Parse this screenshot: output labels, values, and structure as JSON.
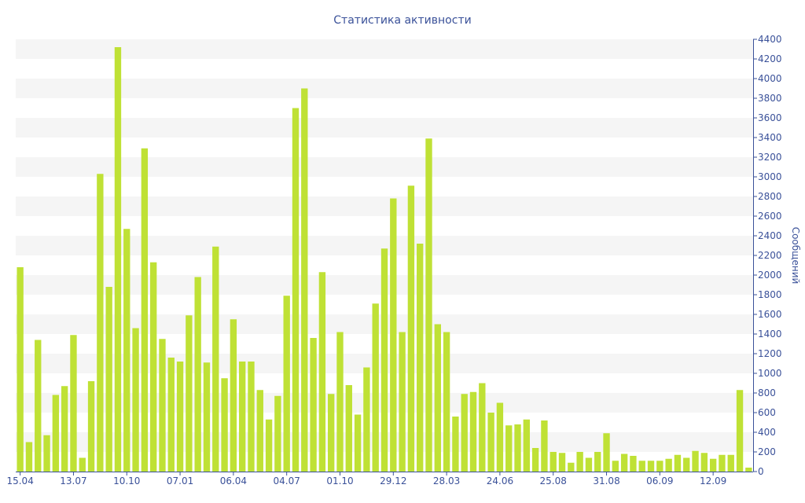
{
  "chart_data": {
    "type": "bar",
    "title": "Статистика активности",
    "xlabel": "",
    "ylabel": "Сообщений",
    "ylim": [
      0,
      4400
    ],
    "yticks": [
      0,
      200,
      400,
      600,
      800,
      1000,
      1200,
      1400,
      1600,
      1800,
      2000,
      2200,
      2400,
      2600,
      2800,
      3000,
      3200,
      3400,
      3600,
      3800,
      4000,
      4200,
      4400
    ],
    "y_axis_position": "right",
    "grid": "alternating horizontal bands",
    "legend": "none",
    "bar_color": "#bfe135",
    "band_color": "#f5f5f5",
    "text_color": "#3a5199",
    "x_tick_labels": [
      {
        "index": 0,
        "label": "15.04"
      },
      {
        "index": 6,
        "label": "13.07"
      },
      {
        "index": 12,
        "label": "10.10"
      },
      {
        "index": 18,
        "label": "07.01"
      },
      {
        "index": 24,
        "label": "06.04"
      },
      {
        "index": 30,
        "label": "04.07"
      },
      {
        "index": 36,
        "label": "01.10"
      },
      {
        "index": 42,
        "label": "29.12"
      },
      {
        "index": 48,
        "label": "28.03"
      },
      {
        "index": 54,
        "label": "24.06"
      },
      {
        "index": 60,
        "label": "25.08"
      },
      {
        "index": 66,
        "label": "31.08"
      },
      {
        "index": 72,
        "label": "06.09"
      },
      {
        "index": 78,
        "label": "12.09"
      }
    ],
    "values": [
      2080,
      300,
      1340,
      370,
      780,
      870,
      1390,
      140,
      920,
      3030,
      1880,
      4320,
      2470,
      1460,
      3290,
      2130,
      1350,
      1160,
      1120,
      1590,
      1980,
      1110,
      2290,
      950,
      1550,
      1120,
      1120,
      830,
      530,
      770,
      1790,
      3700,
      3900,
      1360,
      2030,
      790,
      1420,
      880,
      580,
      1060,
      1710,
      2270,
      2780,
      1420,
      2910,
      2320,
      3390,
      1500,
      1420,
      560,
      790,
      810,
      900,
      600,
      700,
      470,
      480,
      530,
      240,
      520,
      200,
      190,
      90,
      200,
      140,
      200,
      390,
      110,
      180,
      160,
      110,
      110,
      110,
      130,
      170,
      140,
      210,
      190,
      130,
      170,
      170,
      830,
      40
    ]
  }
}
